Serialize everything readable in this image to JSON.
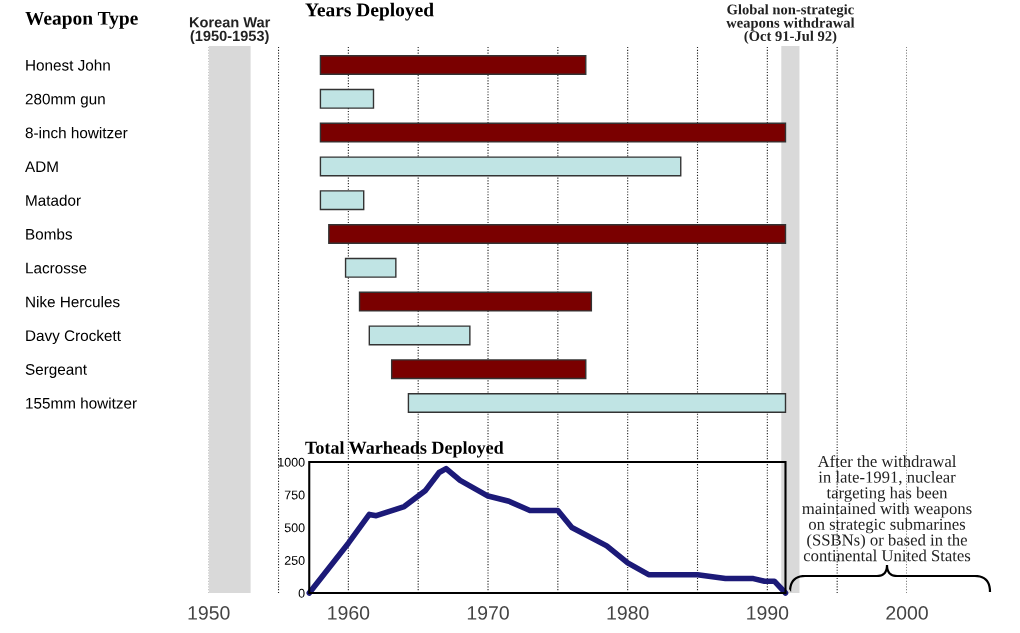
{
  "chart_data": [
    {
      "type": "bar",
      "orientation": "horizontal",
      "title": "Years Deployed",
      "ylabel": "Weapon Type",
      "categories": [
        "Honest John",
        "280mm gun",
        "8-inch howitzer",
        "ADM",
        "Matador",
        "Bombs",
        "Lacrosse",
        "Nike Hercules",
        "Davy Crockett",
        "Sergeant",
        "155mm howitzer"
      ],
      "base": [
        1958,
        1958,
        1958,
        1958,
        1958,
        1958.6,
        1959.8,
        1960.8,
        1961.5,
        1963.1,
        1964.3
      ],
      "values": [
        19.0,
        3.8,
        33.3,
        25.8,
        3.1,
        32.7,
        3.6,
        16.6,
        7.2,
        13.9,
        27.0
      ],
      "colors": [
        "#7a0000",
        "#c0e4e4",
        "#7a0000",
        "#c0e4e4",
        "#c0e4e4",
        "#7a0000",
        "#c0e4e4",
        "#7a0000",
        "#c0e4e4",
        "#7a0000",
        "#c0e4e4"
      ],
      "xticks": [
        1950,
        1955,
        1960,
        1965,
        1970,
        1975,
        1980,
        1985,
        1990,
        1995,
        2000
      ],
      "tick_labels": "y",
      "grid": "x",
      "bands": [
        {
          "axis": "x",
          "from": 1950,
          "to": 1953,
          "label": "Korean War\n(1950-1953)",
          "color": "#d9d9d9"
        },
        {
          "axis": "x",
          "from": 1991,
          "to": 1992.3,
          "label": "Global non-strategic\nweapons withdrawal\n(Oct 91-Jul 92)",
          "color": "#d9d9d9"
        }
      ],
      "annotations": [
        "After the withdrawal\nin late-1991, nuclear\ntargeting has been\nmaintained with weapons\non strategic submarines\n(SSBNs) or based in the\ncontinental United States"
      ]
    },
    {
      "type": "line",
      "title": "Total Warheads Deployed",
      "series": [
        {
          "color": "#1c1a78",
          "x": [
            1957.2,
            1960,
            1961.5,
            1962,
            1964,
            1965.5,
            1966.5,
            1967,
            1968,
            1970,
            1971.5,
            1973,
            1975,
            1976,
            1978.5,
            1980,
            1981.5,
            1985,
            1987,
            1989,
            1989.8,
            1990.5,
            1991.3
          ],
          "values": [
            0,
            380,
            600,
            590,
            660,
            780,
            920,
            950,
            860,
            740,
            700,
            630,
            630,
            500,
            360,
            230,
            140,
            140,
            110,
            110,
            90,
            90,
            0
          ]
        }
      ],
      "xlim": [
        1950,
        2000
      ],
      "xticks": [
        1950,
        {
          "value": 1955,
          "label": null
        },
        1960,
        {
          "value": 1965,
          "label": null
        },
        1970,
        {
          "value": 1975,
          "label": null
        },
        1980,
        {
          "value": 1985,
          "label": null
        },
        1990,
        {
          "value": 1995,
          "label": null
        },
        2000
      ],
      "ylim": [
        0,
        1000
      ],
      "yticks": [
        0,
        250,
        500,
        750,
        1000
      ],
      "grid": "x",
      "bands": [
        {
          "axis": "x",
          "from": 1950,
          "to": 1953,
          "color": "#d9d9d9"
        },
        {
          "axis": "x",
          "from": 1991,
          "to": 1992.3,
          "color": "#d9d9d9"
        }
      ]
    }
  ]
}
